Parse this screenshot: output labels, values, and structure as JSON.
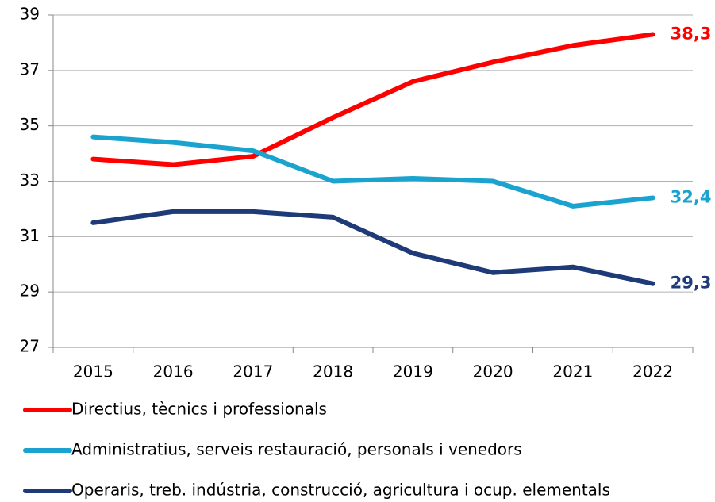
{
  "chart_data": {
    "type": "line",
    "categories": [
      "2015",
      "2016",
      "2017",
      "2018",
      "2019",
      "2020",
      "2021",
      "2022"
    ],
    "series": [
      {
        "name": "Directius, tècnics i professionals",
        "color": "#ff0000",
        "values": [
          33.8,
          33.6,
          33.9,
          35.3,
          36.6,
          37.3,
          37.9,
          38.3
        ],
        "value_labels": [
          null,
          null,
          null,
          null,
          null,
          null,
          null,
          "38,3"
        ]
      },
      {
        "name": "Administratius, serveis restauració, personals i venedors",
        "color": "#1ba3cf",
        "values": [
          34.6,
          34.4,
          34.1,
          33.0,
          33.1,
          33.0,
          32.1,
          32.4
        ],
        "value_labels": [
          null,
          null,
          null,
          null,
          null,
          null,
          null,
          "32,4"
        ]
      },
      {
        "name": "Operaris, treb. indústria, construcció, agricultura i ocup. elementals",
        "color": "#1f3a78",
        "values": [
          31.5,
          31.9,
          31.9,
          31.7,
          30.4,
          29.7,
          29.9,
          29.3
        ],
        "value_labels": [
          null,
          null,
          null,
          null,
          null,
          null,
          null,
          "29,3"
        ]
      }
    ],
    "ylim": [
      27,
      39
    ],
    "yticks": [
      27,
      29,
      31,
      33,
      35,
      37,
      39
    ],
    "grid": true,
    "legend": "bottom"
  }
}
